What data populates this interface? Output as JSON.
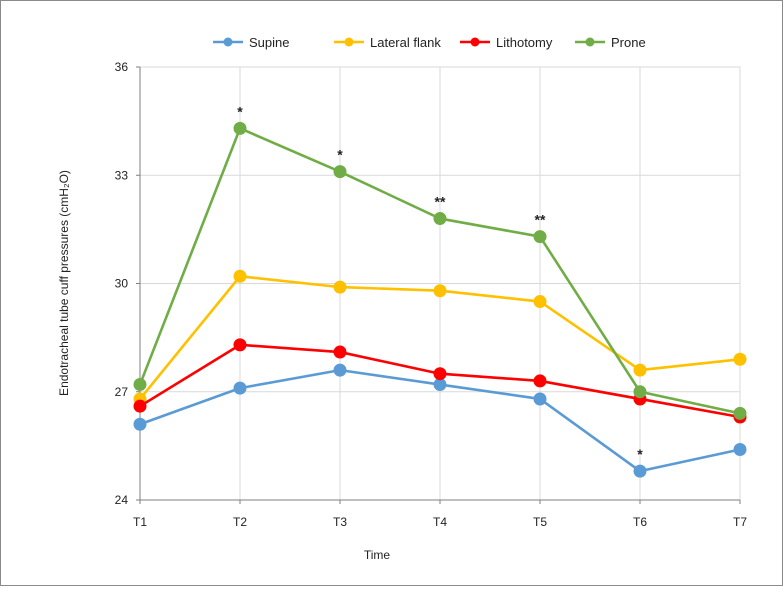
{
  "chart_data": {
    "type": "line",
    "title": "",
    "xlabel": "Time",
    "ylabel": "Endotracheal tube cuff pressures (cmH₂O)",
    "categories": [
      "T1",
      "T2",
      "T3",
      "T4",
      "T5",
      "T6",
      "T7"
    ],
    "ylim": [
      24,
      36
    ],
    "yticks": [
      24,
      27,
      30,
      33,
      36
    ],
    "grid": "vertical and horizontal",
    "legend_position": "top",
    "series": [
      {
        "name": "Supine",
        "color": "#5b9bd5",
        "values": [
          26.1,
          27.1,
          27.6,
          27.2,
          26.8,
          24.8,
          25.4
        ]
      },
      {
        "name": "Lateral flank",
        "color": "#ffc000",
        "values": [
          26.8,
          30.2,
          29.9,
          29.8,
          29.5,
          27.6,
          27.9
        ]
      },
      {
        "name": "Lithotomy",
        "color": "#ff0000",
        "values": [
          26.6,
          28.3,
          28.1,
          27.5,
          27.3,
          26.8,
          26.3
        ]
      },
      {
        "name": "Prone",
        "color": "#70ad47",
        "values": [
          27.2,
          34.3,
          33.1,
          31.8,
          31.3,
          27.0,
          26.4
        ]
      }
    ],
    "annotations": [
      {
        "text": "*",
        "x": "T2",
        "y": 34.3
      },
      {
        "text": "*",
        "x": "T3",
        "y": 33.1
      },
      {
        "text": "**",
        "x": "T4",
        "y": 31.8
      },
      {
        "text": "**",
        "x": "T5",
        "y": 31.3
      },
      {
        "text": "*",
        "x": "T6",
        "y": 24.8
      }
    ]
  }
}
